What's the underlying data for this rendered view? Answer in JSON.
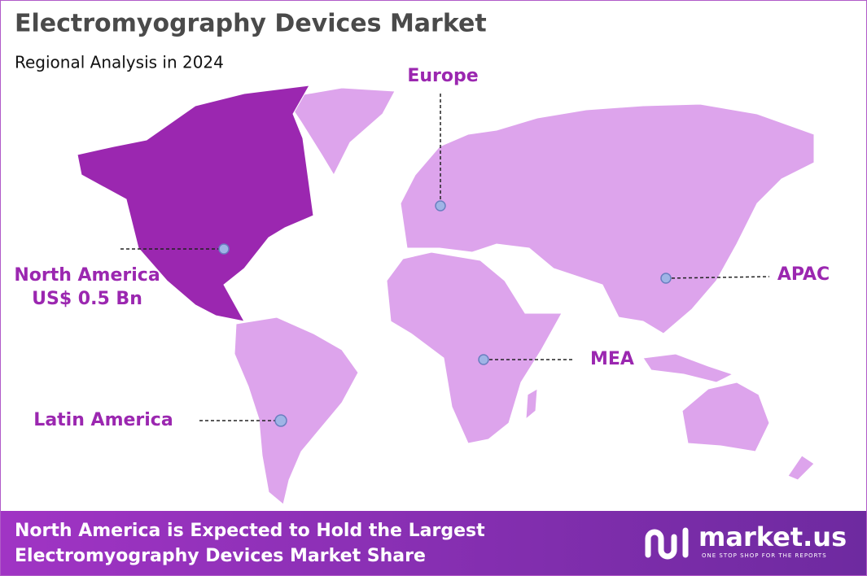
{
  "header": {
    "title": "Electromyography Devices Market",
    "subtitle": "Regional Analysis in 2024"
  },
  "regions": [
    {
      "name": "North America",
      "value_label": "US$ 0.5 Bn"
    },
    {
      "name": "Europe"
    },
    {
      "name": "APAC"
    },
    {
      "name": "MEA"
    },
    {
      "name": "Latin America"
    }
  ],
  "footer": {
    "text_lines": [
      "North America is Expected to Hold the Largest",
      "Electromyography Devices Market Share"
    ],
    "logo": "market.us",
    "tagline": "ONE STOP SHOP FOR THE REPORTS"
  }
}
